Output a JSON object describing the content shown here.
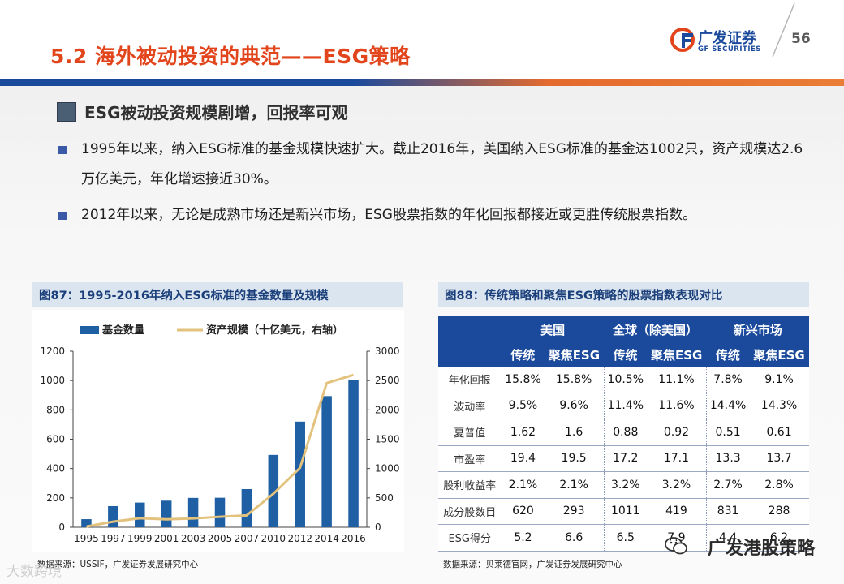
{
  "header": {
    "title": "5.2 海外被动投资的典范——ESG策略",
    "logo_cn": "广发证券",
    "logo_en": "GF SECURITIES",
    "page_number": "56",
    "brand_blue": "#1b4a9c",
    "accent_orange": "#e2441b"
  },
  "section": {
    "heading": "ESG被动投资规模剧增，回报率可观",
    "bullets": [
      "1995年以来，纳入ESG标准的基金规模快速扩大。截止2016年，美国纳入ESG标准的基金达1002只，资产规模达2.6万亿美元，年化增速接近30%。",
      "2012年以来，无论是成熟市场还是新兴市场，ESG股票指数的年化回报都接近或更胜传统股票指数。"
    ]
  },
  "figure87": {
    "title": "图87：1995-2016年纳入ESG标准的基金数量及规模",
    "source": "数据来源：USSIF，广发证券发展研究中心"
  },
  "figure88": {
    "title": "图88：传统策略和聚焦ESG策略的股票指数表现对比",
    "source": "数据来源：贝莱德官网，广发证券发展研究中心",
    "groups": [
      "美国",
      "全球（除美国）",
      "新兴市场"
    ],
    "subheaders": [
      "传统",
      "聚焦ESG",
      "传统",
      "聚焦ESG",
      "传统",
      "聚焦ESG"
    ],
    "rows": [
      {
        "label": "年化回报",
        "values": [
          "15.8%",
          "15.8%",
          "10.5%",
          "11.1%",
          "7.8%",
          "9.1%"
        ]
      },
      {
        "label": "波动率",
        "values": [
          "9.5%",
          "9.6%",
          "11.4%",
          "11.6%",
          "14.4%",
          "14.3%"
        ]
      },
      {
        "label": "夏普值",
        "values": [
          "1.62",
          "1.6",
          "0.88",
          "0.92",
          "0.51",
          "0.61"
        ]
      },
      {
        "label": "市盈率",
        "values": [
          "19.4",
          "19.5",
          "17.2",
          "17.1",
          "13.3",
          "13.7"
        ]
      },
      {
        "label": "股利收益率",
        "values": [
          "2.1%",
          "2.1%",
          "3.2%",
          "3.2%",
          "2.7%",
          "2.8%"
        ]
      },
      {
        "label": "成分股数目",
        "values": [
          "620",
          "293",
          "1011",
          "419",
          "831",
          "288"
        ]
      },
      {
        "label": "ESG得分",
        "values": [
          "5.2",
          "6.6",
          "6.5",
          "7.9",
          "4.4",
          "6.2"
        ]
      }
    ]
  },
  "chart_data": {
    "type": "bar",
    "categories": [
      "1995",
      "1997",
      "1999",
      "2001",
      "2003",
      "2005",
      "2007",
      "2010",
      "2012",
      "2014",
      "2016"
    ],
    "series": [
      {
        "name": "基金数量",
        "type": "bar",
        "axis": "left",
        "color": "#1f5fa3",
        "values": [
          55,
          144,
          168,
          181,
          200,
          201,
          260,
          493,
          720,
          894,
          1002
        ]
      },
      {
        "name": "资产规模（十亿美元，右轴）",
        "type": "line",
        "axis": "right",
        "color": "#e3c27d",
        "values": [
          12,
          96,
          154,
          136,
          151,
          179,
          202,
          569,
          1012,
          2457,
          2597
        ]
      }
    ],
    "y_left": {
      "min": 0,
      "max": 1200,
      "ticks": [
        0,
        200,
        400,
        600,
        800,
        1000,
        1200
      ]
    },
    "y_right": {
      "min": 0,
      "max": 3000,
      "ticks": [
        0,
        500,
        1000,
        1500,
        2000,
        2500,
        3000
      ]
    },
    "legend_position": "top",
    "grid": false
  },
  "watermark": {
    "right_text": "广发港股策略",
    "left_text": "大数跨境"
  }
}
